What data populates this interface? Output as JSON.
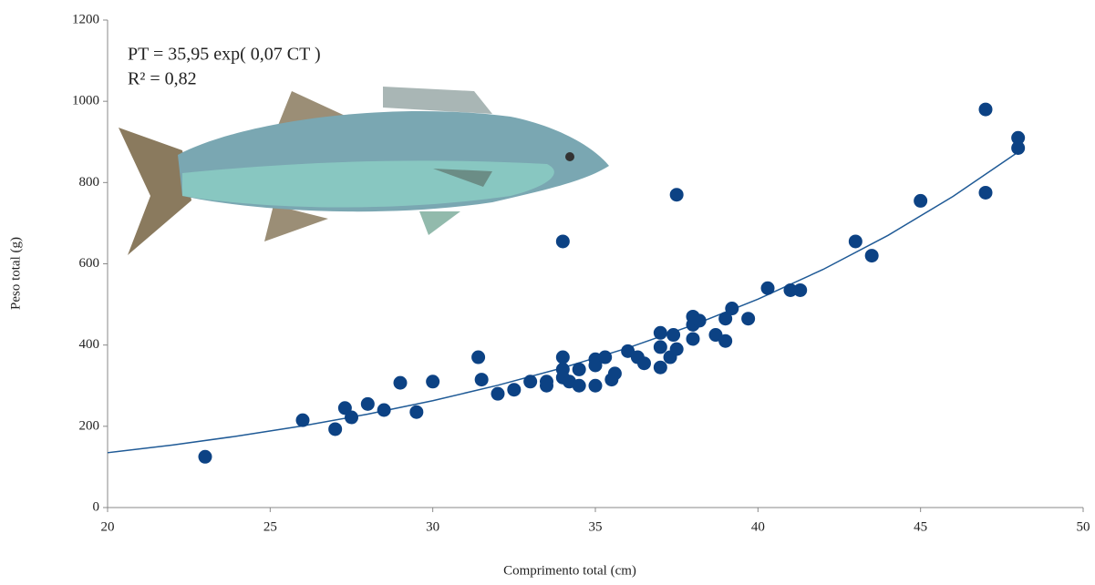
{
  "chart_data": {
    "type": "scatter",
    "annotations": [
      "PT = 35,95 exp( 0,07 CT )",
      "R² = 0,82"
    ],
    "xlabel": "Comprimento total (cm)",
    "ylabel": "Peso total (g)",
    "xlim": [
      20,
      50
    ],
    "xticks": [
      20,
      25,
      30,
      35,
      40,
      45,
      50
    ],
    "ylim": [
      0,
      1200
    ],
    "yticks": [
      0,
      200,
      400,
      600,
      800,
      1000,
      1200
    ],
    "grid": false,
    "points": {
      "color": "#0c4284",
      "x": [
        23,
        26,
        27,
        27.3,
        27.5,
        28,
        28.5,
        29,
        29.5,
        30,
        31.4,
        31.5,
        32,
        32.5,
        33,
        33.5,
        33.5,
        34,
        34,
        34,
        34,
        34.2,
        34.5,
        34.5,
        35,
        35,
        35,
        35.3,
        35.5,
        35.6,
        36,
        36.3,
        36.5,
        37,
        37,
        37,
        37.3,
        37.4,
        37.5,
        37.5,
        38,
        38,
        38,
        38.2,
        38.7,
        39,
        39,
        39.2,
        39.7,
        40.3,
        41,
        41.3,
        43,
        43.5,
        45,
        47,
        47,
        48,
        48
      ],
      "values": [
        125,
        215,
        193,
        245,
        222,
        255,
        240,
        307,
        235,
        310,
        370,
        315,
        280,
        290,
        310,
        300,
        310,
        370,
        340,
        320,
        655,
        310,
        340,
        300,
        365,
        350,
        300,
        370,
        315,
        330,
        385,
        370,
        355,
        430,
        395,
        345,
        370,
        425,
        390,
        770,
        470,
        450,
        415,
        460,
        425,
        465,
        410,
        490,
        465,
        540,
        535,
        535,
        655,
        620,
        755,
        980,
        775,
        910,
        885
      ]
    },
    "trend": {
      "color": "#1f5a96",
      "x": [
        20,
        22,
        24,
        26,
        28,
        30,
        32,
        34,
        36,
        38,
        40,
        42,
        44,
        46,
        48
      ],
      "values": [
        135,
        154,
        176,
        201,
        230,
        263,
        301,
        344,
        393,
        449,
        513,
        586,
        670,
        766,
        875
      ]
    }
  }
}
